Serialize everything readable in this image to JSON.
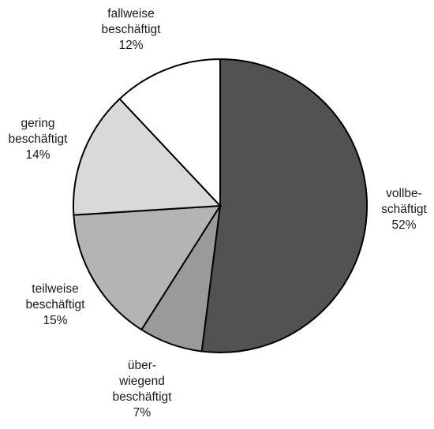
{
  "chart_data": {
    "type": "pie",
    "start_angle_deg": 0,
    "direction": "clockwise",
    "slices": [
      {
        "label_lines": [
          "vollbe-",
          "schäftigt",
          "52%"
        ],
        "value": 52,
        "color": "#525252"
      },
      {
        "label_lines": [
          "über-",
          "wiegend",
          "beschäftigt",
          "7%"
        ],
        "value": 7,
        "color": "#9a9a9a"
      },
      {
        "label_lines": [
          "teilweise",
          "beschäftigt",
          "15%"
        ],
        "value": 15,
        "color": "#b4b4b4"
      },
      {
        "label_lines": [
          "gering",
          "beschäftigt",
          "14%"
        ],
        "value": 14,
        "color": "#d9d9d9"
      },
      {
        "label_lines": [
          "fallweise",
          "beschäftigt",
          "12%"
        ],
        "value": 12,
        "color": "#ffffff"
      }
    ]
  }
}
